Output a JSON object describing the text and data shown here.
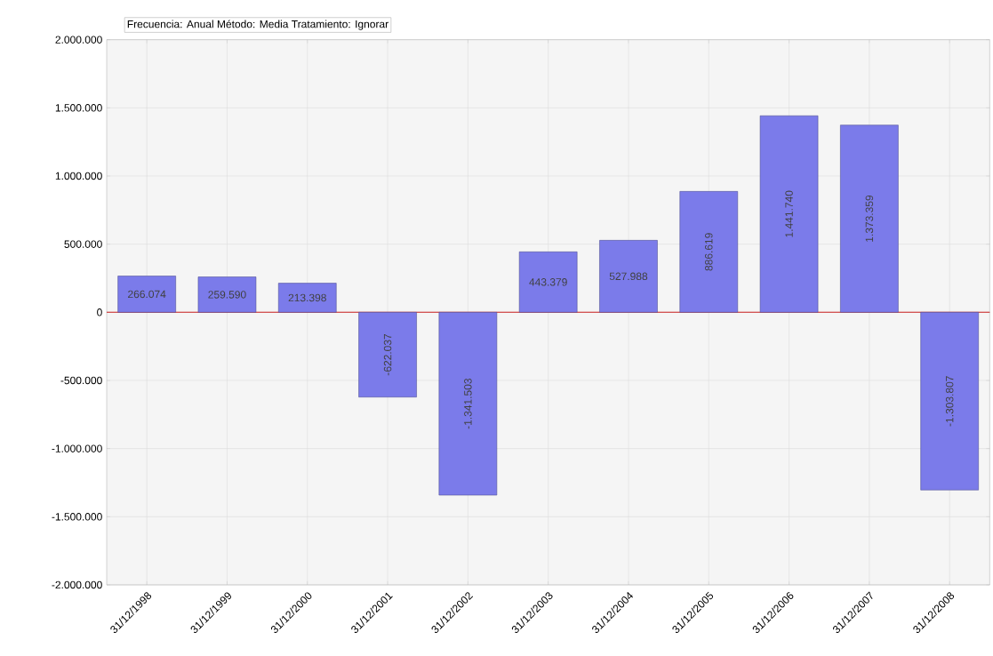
{
  "chart_data": {
    "type": "bar",
    "title": "Frecuencia: Anual Método: Media Tratamiento: Ignorar",
    "categories": [
      "31/12/1998",
      "31/12/1999",
      "31/12/2000",
      "31/12/2001",
      "31/12/2002",
      "31/12/2003",
      "31/12/2004",
      "31/12/2005",
      "31/12/2006",
      "31/12/2007",
      "31/12/2008"
    ],
    "values": [
      266074,
      259590,
      213398,
      -622037,
      -1341503,
      443379,
      527988,
      886619,
      1441740,
      1373359,
      -1303807
    ],
    "value_labels": [
      "266.074",
      "259.590",
      "213.398",
      "-622.037",
      "-1.341.503",
      "443.379",
      "527.988",
      "886.619",
      "1.441.740",
      "1.373.359",
      "-1.303.807"
    ],
    "color": "#7b7bea",
    "ylim": [
      -2000000,
      2000000
    ],
    "yticks": [
      {
        "value": -2000000,
        "label": "-2.000.000"
      },
      {
        "value": -1500000,
        "label": "-1.500.000"
      },
      {
        "value": -1000000,
        "label": "-1.000.000"
      },
      {
        "value": -500000,
        "label": "-500.000"
      },
      {
        "value": 0,
        "label": "0"
      },
      {
        "value": 500000,
        "label": "500.000"
      },
      {
        "value": 1000000,
        "label": "1.000.000"
      },
      {
        "value": 1500000,
        "label": "1.500.000"
      },
      {
        "value": 2000000,
        "label": "2.000.000"
      }
    ],
    "ref_lines": [
      {
        "axis": "y",
        "value": 0,
        "color": "#cc2222"
      }
    ],
    "grid": true
  }
}
